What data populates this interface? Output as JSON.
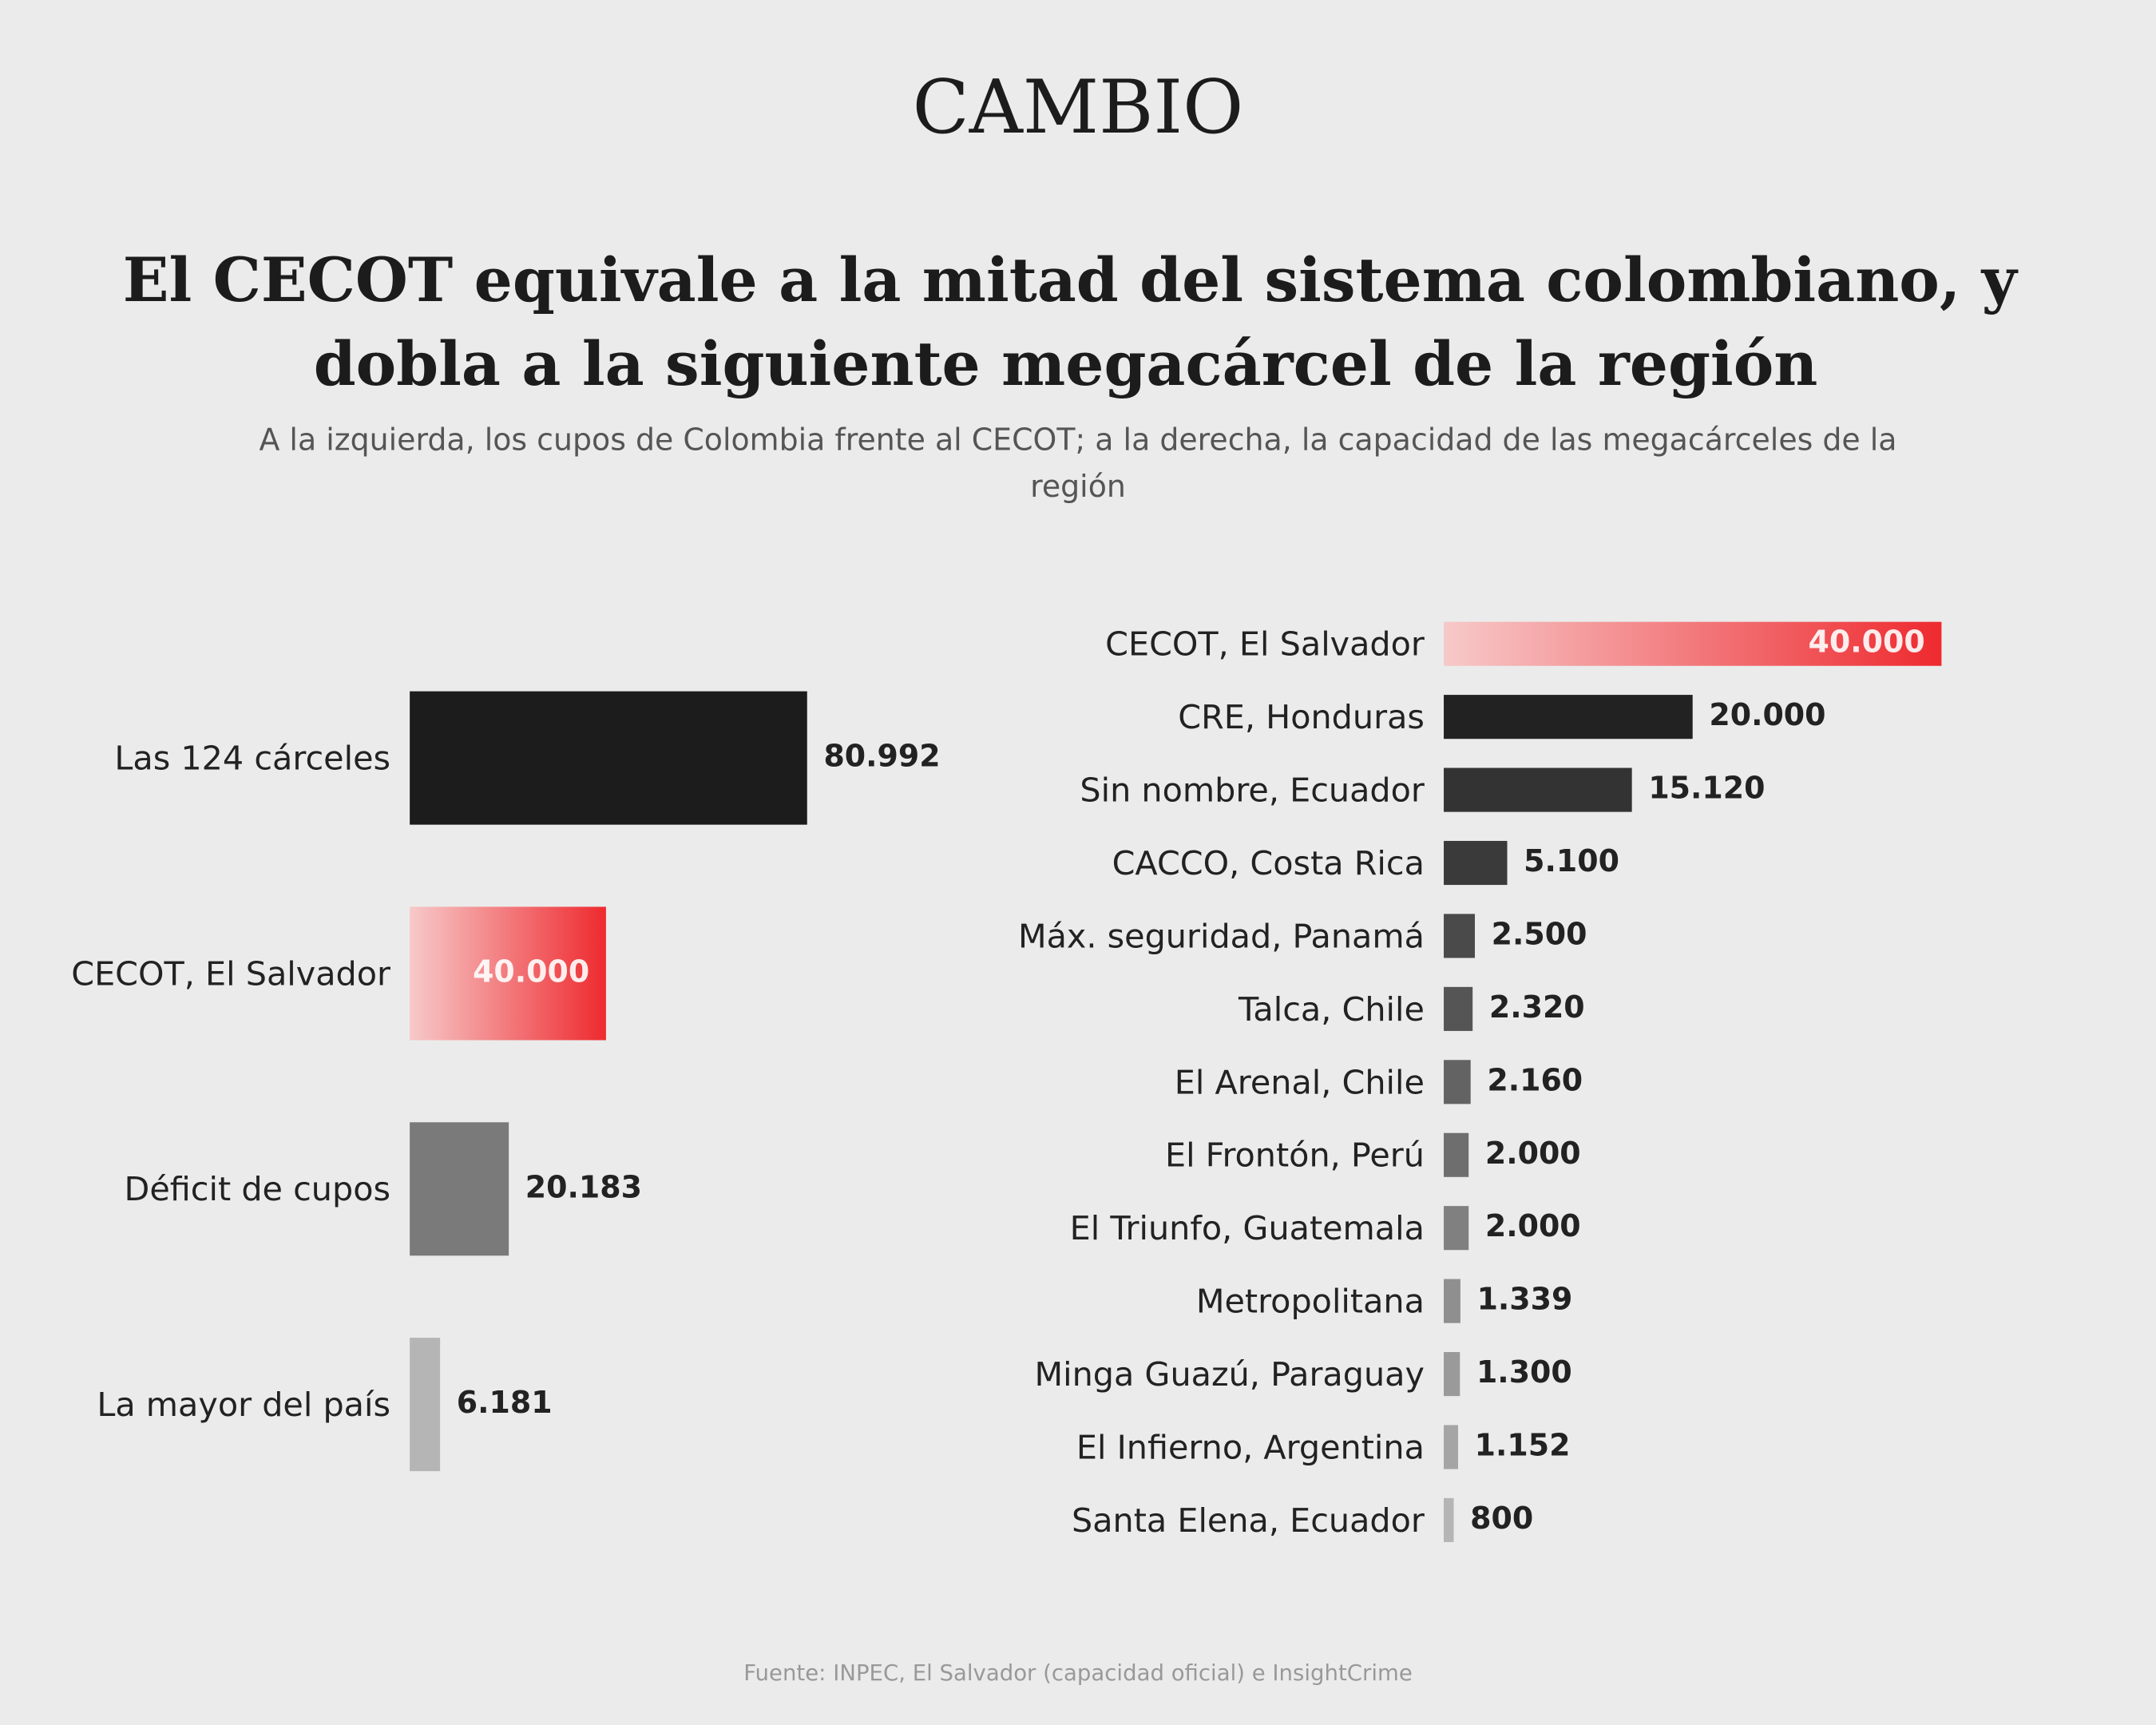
{
  "header": {
    "logo": "CAMBIO",
    "title": [
      "El CECOT equivale a la mitad del sistema colombiano, y",
      "dobla a la siguiente megacárcel de la región"
    ],
    "subtitle": [
      "A la izquierda, los cupos de Colombia frente al CECOT; a la derecha, la capacidad de las megacárceles de la",
      "región"
    ]
  },
  "source": "Fuente: INPEC, El Salvador (capacidad oficial) e InsightCrime",
  "chart_data": [
    {
      "type": "bar",
      "orientation": "horizontal",
      "categories": [
        "Las 124 cárceles",
        "CECOT, El Salvador",
        "Déficit de cupos",
        "La mayor del país"
      ],
      "values": [
        80992,
        40000,
        20183,
        6181
      ],
      "value_labels": [
        "80.992",
        "40.000",
        "20.183",
        "6.181"
      ],
      "colors": [
        "#1c1c1c",
        "#ee2a2f",
        "#7a7a7a",
        "#b5b5b5"
      ],
      "gradient_index": 1
    },
    {
      "type": "bar",
      "orientation": "horizontal",
      "categories": [
        "CECOT, El Salvador",
        "CRE, Honduras",
        "Sin nombre, Ecuador",
        "CACCO, Costa Rica",
        "Máx. seguridad, Panamá",
        "Talca, Chile",
        "El Arenal, Chile",
        "El Frontón, Perú",
        "El Triunfo, Guatemala",
        "Metropolitana",
        "Minga Guazú, Paraguay",
        "El Infierno, Argentina",
        "Santa Elena, Ecuador"
      ],
      "values": [
        40000,
        20000,
        15120,
        5100,
        2500,
        2320,
        2160,
        2000,
        2000,
        1339,
        1300,
        1152,
        800
      ],
      "value_labels": [
        "40.000",
        "20.000",
        "15.120",
        "5.100",
        "2.500",
        "2.320",
        "2.160",
        "2.000",
        "2.000",
        "1.339",
        "1.300",
        "1.152",
        "800"
      ],
      "colors": [
        "#ee2a2f",
        "#222222",
        "#333333",
        "#3a3a3a",
        "#4a4a4a",
        "#555555",
        "#636363",
        "#6e6e6e",
        "#808080",
        "#8f8f8f",
        "#9a9a9a",
        "#a5a5a5",
        "#b5b5b5"
      ],
      "gradient_index": 0
    }
  ]
}
